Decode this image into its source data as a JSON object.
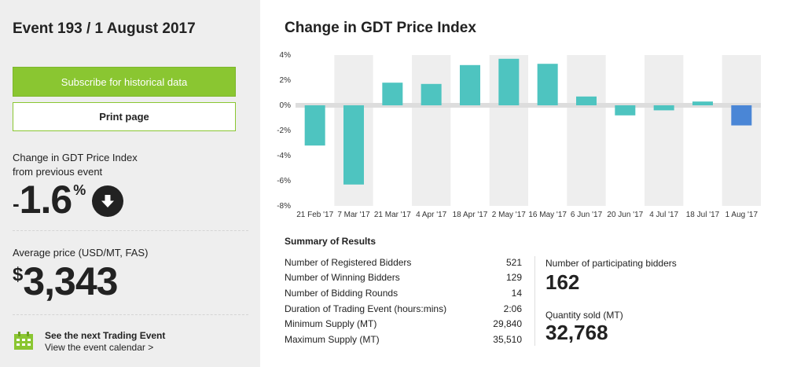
{
  "sidebar": {
    "event_title": "Event 193 / 1 August 2017",
    "subscribe_label": "Subscribe for historical data",
    "print_label": "Print page",
    "change_label_line1": "Change in GDT Price Index",
    "change_label_line2": "from previous event",
    "change_sign": "-",
    "change_value": "1.6",
    "change_unit": "%",
    "avg_label": "Average price (USD/MT, FAS)",
    "avg_sign": "$",
    "avg_value": "3,343",
    "next_title": "See the next Trading Event",
    "next_link": "View the event calendar >"
  },
  "main": {
    "chart_title": "Change in GDT Price Index"
  },
  "chart_data": {
    "type": "bar",
    "categories": [
      "21 Feb '17",
      "7 Mar '17",
      "21 Mar '17",
      "4 Apr '17",
      "18 Apr '17",
      "2 May '17",
      "16 May '17",
      "6 Jun '17",
      "20 Jun '17",
      "4 Jul '17",
      "18 Jul '17",
      "1 Aug '17"
    ],
    "values": [
      -3.2,
      -6.3,
      1.8,
      1.7,
      3.2,
      3.7,
      3.3,
      0.7,
      -0.8,
      -0.4,
      0.3,
      -1.6
    ],
    "ylim": [
      -8,
      4
    ],
    "yticks": [
      "4%",
      "2%",
      "0%",
      "-2%",
      "-4%",
      "-6%",
      "-8%"
    ],
    "colors": {
      "bar": "#4ec4c0",
      "highlight": "#4a86d6",
      "band": "#eeeeee",
      "zero_band": "#dddddd"
    },
    "grid": true
  },
  "summary": {
    "title": "Summary of Results",
    "rows": [
      {
        "label": "Number of Registered Bidders",
        "value": "521"
      },
      {
        "label": "Number of Winning Bidders",
        "value": "129"
      },
      {
        "label": "Number of Bidding Rounds",
        "value": "14"
      },
      {
        "label": "Duration of Trading Event (hours:mins)",
        "value": "2:06"
      },
      {
        "label": "Minimum Supply (MT)",
        "value": "29,840"
      },
      {
        "label": "Maximum Supply (MT)",
        "value": "35,510"
      }
    ],
    "participating_label": "Number of participating bidders",
    "participating_value": "162",
    "quantity_label": "Quantity sold (MT)",
    "quantity_value": "32,768"
  },
  "icons": {
    "arrow": "arrow-down-circle-icon",
    "calendar": "calendar-icon"
  }
}
